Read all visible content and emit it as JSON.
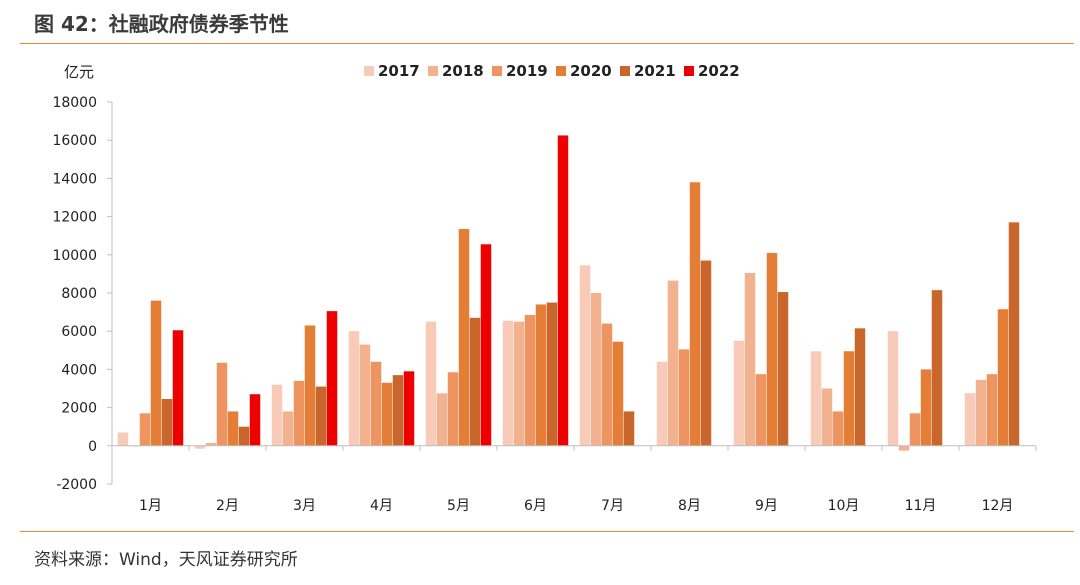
{
  "figure_title": "图 42：社融政府债券季节性",
  "source_note": "资料来源：Wind，天风证券研究所",
  "chart_data": {
    "type": "bar",
    "title": "",
    "ylabel": "亿元",
    "xlabel": "",
    "ylim": [
      -2000,
      18000
    ],
    "yticks": [
      "18000",
      "16000",
      "14000",
      "12000",
      "10000",
      "8000",
      "6000",
      "4000",
      "2000",
      "0",
      "-2000"
    ],
    "grid": false,
    "legend_position": "top",
    "categories": [
      "1月",
      "2月",
      "3月",
      "4月",
      "5月",
      "6月",
      "7月",
      "8月",
      "9月",
      "10月",
      "11月",
      "12月"
    ],
    "series": [
      {
        "name": "2017",
        "color": "#f7cbb8",
        "values": [
          700,
          -150,
          3200,
          6000,
          6500,
          6550,
          9450,
          4400,
          5500,
          4950,
          6000,
          2750
        ]
      },
      {
        "name": "2018",
        "color": "#f2b28f",
        "values": [
          0,
          150,
          1800,
          5300,
          2750,
          6500,
          8000,
          8650,
          9050,
          3000,
          -250,
          3450
        ]
      },
      {
        "name": "2019",
        "color": "#ed9460",
        "values": [
          1700,
          4350,
          3400,
          4400,
          3850,
          6850,
          6400,
          5050,
          3750,
          1800,
          1700,
          3750
        ]
      },
      {
        "name": "2020",
        "color": "#e47e36",
        "values": [
          7600,
          1800,
          6300,
          3300,
          11350,
          7400,
          5450,
          13800,
          10100,
          4950,
          4000,
          7150
        ]
      },
      {
        "name": "2021",
        "color": "#c9662b",
        "values": [
          2450,
          1000,
          3100,
          3700,
          6700,
          7500,
          1800,
          9700,
          8050,
          6150,
          8150,
          11700
        ]
      },
      {
        "name": "2022",
        "color": "#ee0000",
        "values": [
          6050,
          2700,
          7050,
          3900,
          10550,
          16250,
          null,
          null,
          null,
          null,
          null,
          null
        ]
      }
    ]
  }
}
